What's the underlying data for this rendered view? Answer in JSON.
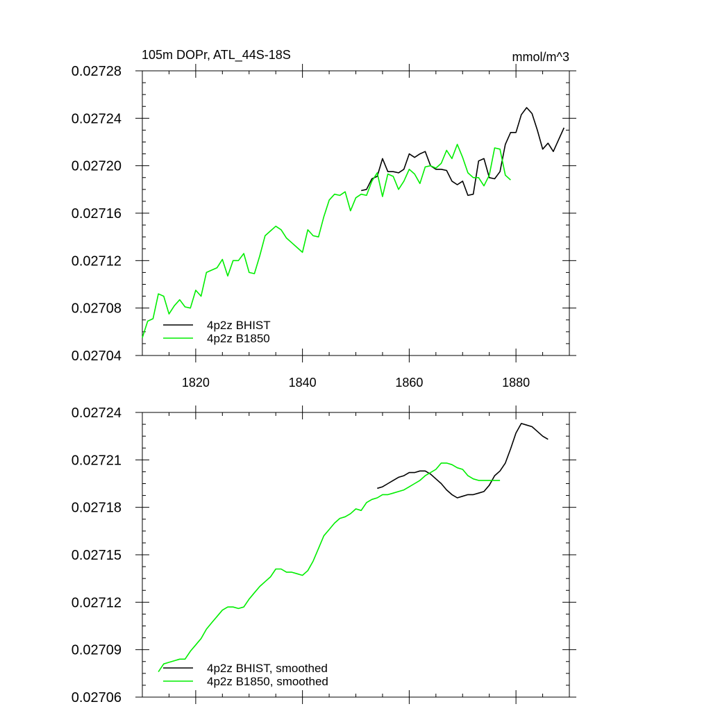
{
  "chart_data": [
    {
      "type": "line",
      "title_left": "105m DOPr, ATL_44S-18S",
      "title_right": "mmol/m^3",
      "xlim": [
        1810,
        1890
      ],
      "ylim": [
        0.02704,
        0.02728
      ],
      "xticks": [
        1820,
        1840,
        1860,
        1880
      ],
      "xtick_labels": [
        "1820",
        "1840",
        "1860",
        "1880"
      ],
      "yticks": [
        0.02704,
        0.02708,
        0.02712,
        0.02716,
        0.0272,
        0.02724,
        0.02728
      ],
      "ytick_labels": [
        "0.02704",
        "0.02708",
        "0.02712",
        "0.02716",
        "0.02720",
        "0.02724",
        "0.02728"
      ],
      "legend_position": "bottom-left",
      "series": [
        {
          "name": "4p2z BHIST",
          "color": "#000000",
          "x": [
            1851,
            1852,
            1853,
            1854,
            1855,
            1856,
            1857,
            1858,
            1859,
            1860,
            1861,
            1862,
            1863,
            1864,
            1865,
            1866,
            1867,
            1868,
            1869,
            1870,
            1871,
            1872,
            1873,
            1874,
            1875,
            1876,
            1877,
            1878,
            1879,
            1880,
            1881,
            1882,
            1883,
            1884,
            1885,
            1886,
            1887,
            1888,
            1889
          ],
          "y": [
            0.027179,
            0.02718,
            0.027189,
            0.027191,
            0.027206,
            0.027195,
            0.027195,
            0.027194,
            0.027197,
            0.02721,
            0.027207,
            0.02721,
            0.027212,
            0.0272,
            0.027197,
            0.027197,
            0.027196,
            0.027187,
            0.027184,
            0.027187,
            0.027175,
            0.027176,
            0.027204,
            0.027206,
            0.02719,
            0.027189,
            0.027195,
            0.027218,
            0.027228,
            0.027228,
            0.027243,
            0.027249,
            0.027244,
            0.02723,
            0.027214,
            0.027219,
            0.027212,
            0.027222,
            0.027232
          ]
        },
        {
          "name": "4p2z B1850",
          "color": "#00ee00",
          "x": [
            1810,
            1811,
            1812,
            1813,
            1814,
            1815,
            1816,
            1817,
            1818,
            1819,
            1820,
            1821,
            1822,
            1823,
            1824,
            1825,
            1826,
            1827,
            1828,
            1829,
            1830,
            1831,
            1832,
            1833,
            1834,
            1835,
            1836,
            1837,
            1838,
            1839,
            1840,
            1841,
            1842,
            1843,
            1844,
            1845,
            1846,
            1847,
            1848,
            1849,
            1850,
            1851,
            1852,
            1853,
            1854,
            1855,
            1856,
            1857,
            1858,
            1859,
            1860,
            1861,
            1862,
            1863,
            1864,
            1865,
            1866,
            1867,
            1868,
            1869,
            1870,
            1871,
            1872,
            1873,
            1874,
            1875,
            1876,
            1877,
            1878,
            1879
          ],
          "y": [
            0.027055,
            0.027069,
            0.027071,
            0.027092,
            0.02709,
            0.027075,
            0.027082,
            0.027087,
            0.027081,
            0.02708,
            0.027095,
            0.02709,
            0.02711,
            0.027112,
            0.027114,
            0.027121,
            0.027107,
            0.02712,
            0.02712,
            0.027126,
            0.02711,
            0.027109,
            0.027124,
            0.027141,
            0.027145,
            0.027149,
            0.027146,
            0.027139,
            0.027135,
            0.027131,
            0.027127,
            0.027146,
            0.027141,
            0.02714,
            0.027157,
            0.027171,
            0.027176,
            0.027175,
            0.027178,
            0.027162,
            0.027173,
            0.027176,
            0.027175,
            0.027187,
            0.027194,
            0.027174,
            0.027193,
            0.027191,
            0.02718,
            0.027187,
            0.027197,
            0.027193,
            0.027185,
            0.027199,
            0.0272,
            0.027198,
            0.027202,
            0.027213,
            0.027206,
            0.027218,
            0.027207,
            0.027194,
            0.02719,
            0.02719,
            0.027183,
            0.027192,
            0.027215,
            0.027214,
            0.027192,
            0.027188
          ]
        }
      ]
    },
    {
      "type": "line",
      "xlim": [
        1810,
        1890
      ],
      "ylim": [
        0.02706,
        0.02724
      ],
      "xticks": [
        1820,
        1840,
        1860,
        1880
      ],
      "yticks": [
        0.02706,
        0.02709,
        0.02712,
        0.02715,
        0.02718,
        0.02721,
        0.02724
      ],
      "ytick_labels": [
        "0.02706",
        "0.02709",
        "0.02712",
        "0.02715",
        "0.02718",
        "0.02721",
        "0.02724"
      ],
      "legend_position": "bottom-left",
      "series": [
        {
          "name": "4p2z BHIST, smoothed",
          "color": "#000000",
          "x": [
            1854,
            1855,
            1856,
            1857,
            1858,
            1859,
            1860,
            1861,
            1862,
            1863,
            1864,
            1865,
            1866,
            1867,
            1868,
            1869,
            1870,
            1871,
            1872,
            1873,
            1874,
            1875,
            1876,
            1877,
            1878,
            1879,
            1880,
            1881,
            1882,
            1883,
            1884,
            1885,
            1886
          ],
          "y": [
            0.027192,
            0.027193,
            0.027195,
            0.027197,
            0.027199,
            0.0272,
            0.027202,
            0.027202,
            0.027203,
            0.027203,
            0.027201,
            0.027198,
            0.027195,
            0.027191,
            0.027188,
            0.027186,
            0.027187,
            0.027188,
            0.027188,
            0.027189,
            0.02719,
            0.027194,
            0.0272,
            0.027203,
            0.027208,
            0.027217,
            0.027227,
            0.027233,
            0.027232,
            0.027231,
            0.027228,
            0.027225,
            0.027223
          ]
        },
        {
          "name": "4p2z B1850, smoothed",
          "color": "#00ee00",
          "x": [
            1813,
            1814,
            1815,
            1816,
            1817,
            1818,
            1819,
            1820,
            1821,
            1822,
            1823,
            1824,
            1825,
            1826,
            1827,
            1828,
            1829,
            1830,
            1831,
            1832,
            1833,
            1834,
            1835,
            1836,
            1837,
            1838,
            1839,
            1840,
            1841,
            1842,
            1843,
            1844,
            1845,
            1846,
            1847,
            1848,
            1849,
            1850,
            1851,
            1852,
            1853,
            1854,
            1855,
            1856,
            1857,
            1858,
            1859,
            1860,
            1861,
            1862,
            1863,
            1864,
            1865,
            1866,
            1867,
            1868,
            1869,
            1870,
            1871,
            1872,
            1873,
            1874,
            1875,
            1876,
            1877
          ],
          "y": [
            0.027076,
            0.027081,
            0.027082,
            0.027083,
            0.027084,
            0.027084,
            0.027089,
            0.027093,
            0.027097,
            0.027103,
            0.027107,
            0.027111,
            0.027115,
            0.027117,
            0.027117,
            0.027116,
            0.027117,
            0.027122,
            0.027126,
            0.02713,
            0.027133,
            0.027136,
            0.027141,
            0.027141,
            0.027139,
            0.027139,
            0.027138,
            0.027137,
            0.02714,
            0.027146,
            0.027154,
            0.027162,
            0.027166,
            0.02717,
            0.027173,
            0.027174,
            0.027176,
            0.027179,
            0.027178,
            0.027183,
            0.027185,
            0.027186,
            0.027188,
            0.027188,
            0.027189,
            0.02719,
            0.027191,
            0.027193,
            0.027195,
            0.027197,
            0.0272,
            0.027202,
            0.027204,
            0.027208,
            0.027208,
            0.027207,
            0.027205,
            0.027204,
            0.0272,
            0.027198,
            0.027197,
            0.027197,
            0.027197,
            0.027197,
            0.027197
          ]
        }
      ]
    }
  ]
}
